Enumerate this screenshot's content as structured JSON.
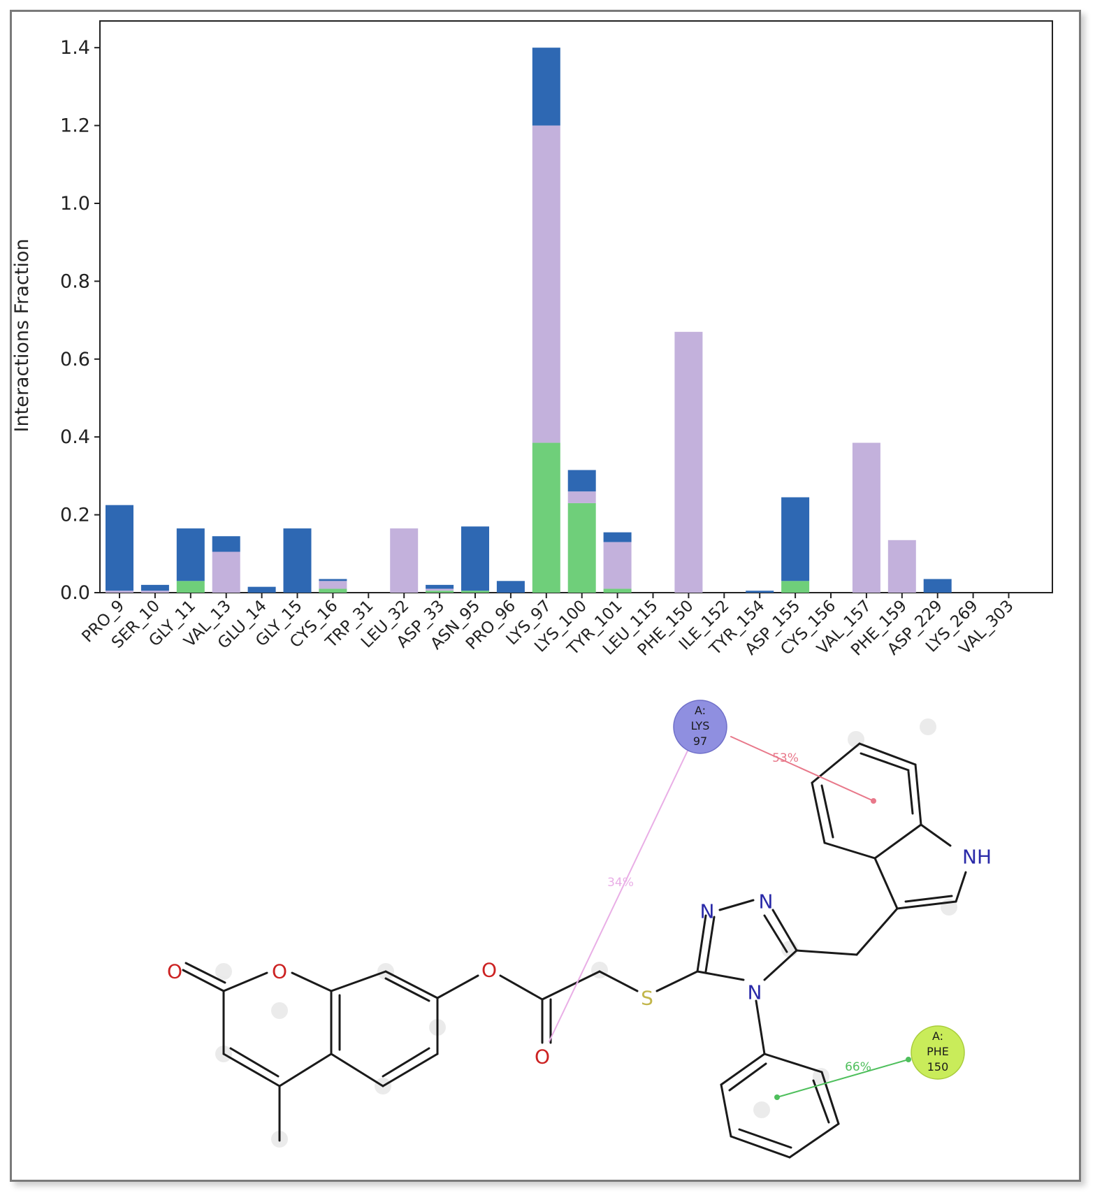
{
  "chart_data": {
    "type": "bar",
    "stacked": true,
    "ylabel": "Interactions Fraction",
    "ylim": [
      0,
      1.45
    ],
    "yticks": [
      "0.0",
      "0.2",
      "0.4",
      "0.6",
      "0.8",
      "1.0",
      "1.2",
      "1.4"
    ],
    "grid": false,
    "categories": [
      "PRO_9",
      "SER_10",
      "GLY_11",
      "VAL_13",
      "GLU_14",
      "GLY_15",
      "CYS_16",
      "TRP_31",
      "LEU_32",
      "ASP_33",
      "ASN_95",
      "PRO_96",
      "LYS_97",
      "LYS_100",
      "TYR_101",
      "LEU_115",
      "PHE_150",
      "ILE_152",
      "TYR_154",
      "ASP_155",
      "CYS_156",
      "VAL_157",
      "PHE_159",
      "ASP_229",
      "LYS_269",
      "VAL_303"
    ],
    "series": [
      {
        "color": "#6fcf7a",
        "values": [
          0.0,
          0.0,
          0.03,
          0.0,
          0.0,
          0.0,
          0.01,
          0.0,
          0.0,
          0.005,
          0.005,
          0.0,
          0.385,
          0.23,
          0.01,
          0.0,
          0.0,
          0.0,
          0.0,
          0.03,
          0.0,
          0.0,
          0.0,
          0.0,
          0.0,
          0.0
        ]
      },
      {
        "color": "#c3b1dc",
        "values": [
          0.005,
          0.005,
          0.0,
          0.105,
          0.0,
          0.0,
          0.02,
          0.0,
          0.165,
          0.005,
          0.0,
          0.0,
          0.815,
          0.03,
          0.12,
          0.0,
          0.67,
          0.0,
          0.0,
          0.0,
          0.0,
          0.385,
          0.135,
          0.0,
          0.0,
          0.0
        ]
      },
      {
        "color": "#2e68b3",
        "values": [
          0.22,
          0.015,
          0.135,
          0.04,
          0.015,
          0.165,
          0.005,
          0.0,
          0.0,
          0.01,
          0.165,
          0.03,
          0.2,
          0.055,
          0.025,
          0.0,
          0.0,
          0.0,
          0.005,
          0.215,
          0.0,
          0.0,
          0.0,
          0.035,
          0.0,
          0.0
        ]
      }
    ]
  },
  "diagram": {
    "atoms": {
      "carbonyl_o_left": "O",
      "ring_o": "O",
      "ester_o": "O",
      "ester_carbonyl_o": "O",
      "sulfur": "S",
      "triazole_n1": "N",
      "triazole_n2": "N",
      "triazole_n4": "N",
      "indole_nh": "NH"
    },
    "residues": [
      {
        "chain": "A:",
        "name": "LYS",
        "number": "97",
        "color": "#8f8fe0"
      },
      {
        "chain": "A:",
        "name": "PHE",
        "number": "150",
        "color": "#c9ec5a"
      }
    ],
    "interactions": [
      {
        "label": "53%",
        "color": "#e8788a"
      },
      {
        "label": "34%",
        "color": "#e9aee6"
      },
      {
        "label": "66%",
        "color": "#4ebf5c"
      }
    ]
  }
}
